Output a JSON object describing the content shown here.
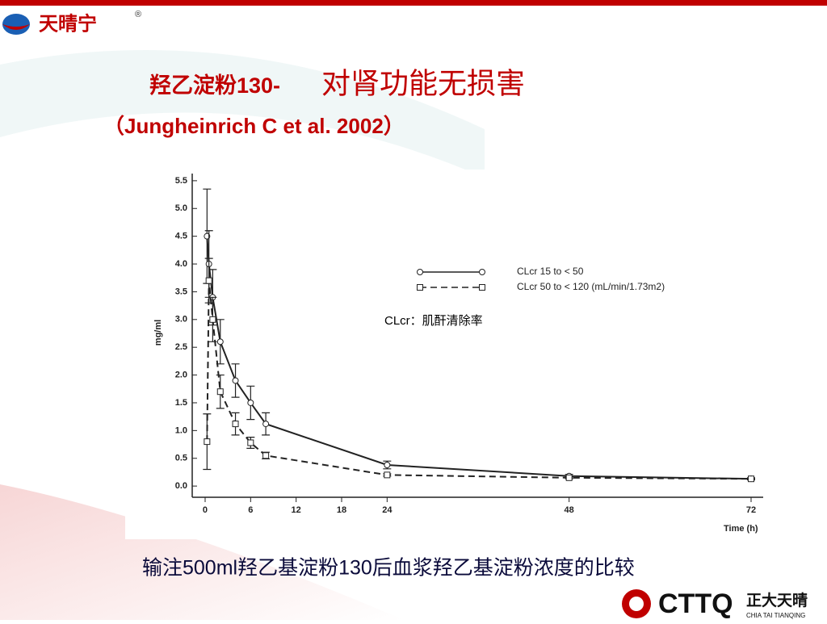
{
  "header": {
    "logo_text": "天晴宁",
    "registered": "®"
  },
  "title": {
    "part1": "羟乙淀粉130-",
    "part2": "对肾功能无损害"
  },
  "citation": "（Jungheinrich C et al. 2002）",
  "chart_data": {
    "type": "line",
    "x": [
      0.25,
      0.5,
      1,
      2,
      4,
      6,
      8,
      24,
      48,
      72
    ],
    "series": [
      {
        "name": "CLcr 15 to < 50",
        "color": "#222222",
        "line_style": "solid",
        "marker": "circle",
        "values": [
          4.5,
          4.0,
          3.4,
          2.6,
          1.9,
          1.5,
          1.12,
          0.38,
          0.18,
          0.13
        ],
        "errors": [
          0.85,
          0.6,
          0.5,
          0.4,
          0.3,
          0.3,
          0.2,
          0.07,
          0.03,
          0.02
        ]
      },
      {
        "name": "CLcr 50 to < 120 (mL/min/1.73m2)",
        "color": "#222222",
        "line_style": "dashed",
        "marker": "square",
        "values": [
          0.8,
          3.7,
          3.0,
          1.7,
          1.12,
          0.78,
          0.55,
          0.2,
          0.15,
          0.13
        ],
        "errors": [
          0.5,
          0.4,
          0.4,
          0.3,
          0.2,
          0.1,
          0.06,
          0.02,
          0.02,
          0.01
        ]
      }
    ],
    "xlim": [
      -1,
      73
    ],
    "xticks": [
      0,
      6,
      12,
      18,
      24,
      48,
      72
    ],
    "ylim": [
      -0.1,
      5.6
    ],
    "yticks": [
      {
        "value": 0,
        "label": "0.0"
      },
      {
        "value": 0.5,
        "label": "0.5"
      },
      {
        "value": 1,
        "label": "1.0"
      },
      {
        "value": 1.5,
        "label": "1.5"
      },
      {
        "value": 2,
        "label": "2.0"
      },
      {
        "value": 2.5,
        "label": "2.5"
      },
      {
        "value": 3,
        "label": "3.0"
      },
      {
        "value": 3.5,
        "label": "3.5"
      },
      {
        "value": 4,
        "label": "4.0"
      },
      {
        "value": 4.5,
        "label": "4.5"
      },
      {
        "value": 5,
        "label": "5.0"
      },
      {
        "value": 5.5,
        "label": "5.5"
      }
    ],
    "x_label": "Time (h)",
    "y_label": "mg/ml",
    "grid": false,
    "annotation": "CLcr：肌酐清除率"
  },
  "caption": "输注500ml羟乙基淀粉130后血浆羟乙基淀粉浓度的比较",
  "footer": {
    "brand": "CTTQ",
    "name_cn": "正大天晴",
    "name_en": "CHIA TAI TIANQING"
  }
}
